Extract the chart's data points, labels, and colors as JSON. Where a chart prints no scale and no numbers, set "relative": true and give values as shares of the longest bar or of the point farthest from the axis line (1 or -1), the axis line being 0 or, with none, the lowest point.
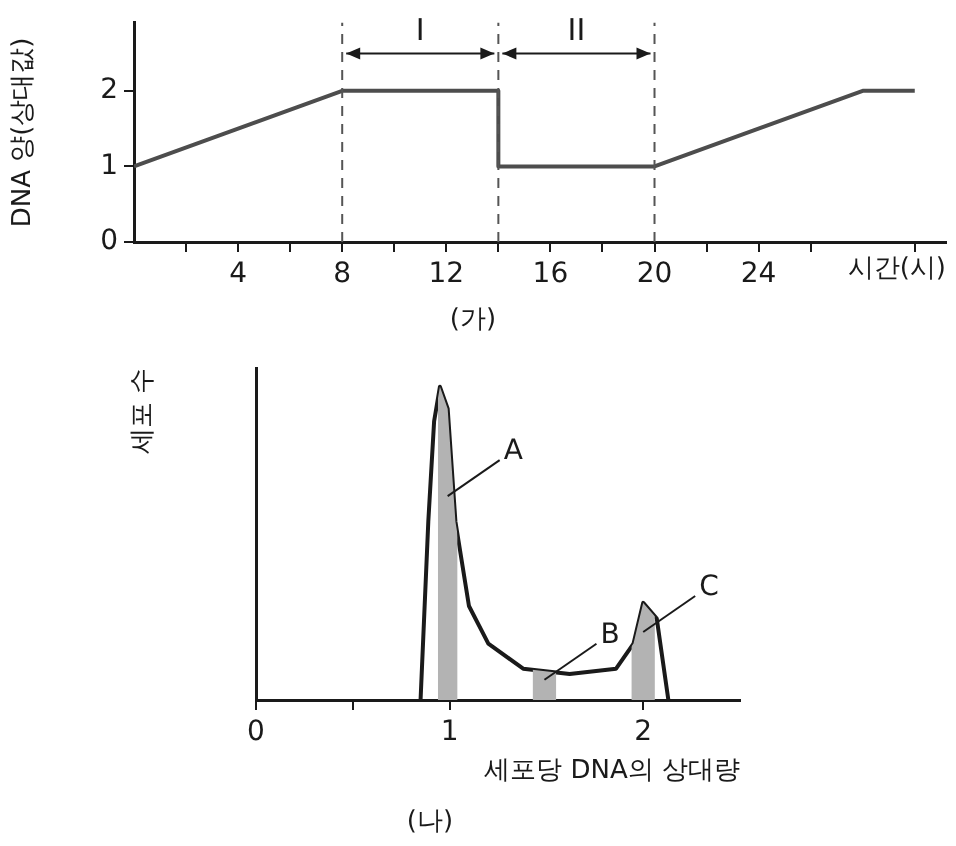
{
  "chart_data": [
    {
      "type": "line",
      "title": "(가)",
      "xlabel": "시간(시)",
      "ylabel": "DNA 양(상대값)",
      "x": [
        0,
        8,
        14,
        14,
        20,
        28,
        30
      ],
      "values": [
        1,
        2,
        2,
        1,
        1,
        2,
        2
      ],
      "color": "#4d4d4d",
      "xlim": [
        0,
        31.2
      ],
      "ylim": [
        0,
        2.9
      ],
      "xticks": [
        {
          "value": 2,
          "label": null
        },
        4,
        {
          "value": 6,
          "label": null
        },
        8,
        {
          "value": 10,
          "label": null
        },
        12,
        {
          "value": 14,
          "label": null
        },
        16,
        {
          "value": 18,
          "label": null
        },
        20,
        {
          "value": 22,
          "label": null
        },
        24,
        {
          "value": 26,
          "label": null
        },
        {
          "value": 30,
          "label": null
        }
      ],
      "yticks": [
        0,
        1,
        2
      ],
      "ref_lines": [
        {
          "axis": "x",
          "value": 8,
          "line_style": "dashed"
        },
        {
          "axis": "x",
          "value": 14,
          "line_style": "dashed"
        },
        {
          "axis": "x",
          "value": 20,
          "line_style": "dashed"
        }
      ],
      "annotations": [
        "I",
        "II"
      ],
      "grid": false,
      "marker": "none"
    },
    {
      "type": "line",
      "title": "(나)",
      "xlabel": "세포당 DNA의 상대량",
      "ylabel": "세포 수",
      "relative": true,
      "x": [
        0.85,
        0.89,
        0.92,
        0.95,
        0.99,
        1.03,
        1.1,
        1.2,
        1.38,
        1.62,
        1.86,
        1.95,
        2.0,
        2.07,
        2.13
      ],
      "values": [
        0,
        0.57,
        0.89,
        1,
        0.93,
        0.57,
        0.3,
        0.18,
        0.1,
        0.083,
        0.1,
        0.18,
        0.31,
        0.26,
        0
      ],
      "color": "#1a1a1a",
      "xlim": [
        0,
        2.5
      ],
      "xticks": [
        0,
        {
          "value": 0.5,
          "label": null
        },
        1,
        2
      ],
      "bands": [
        {
          "axis": "x",
          "from": 0.94,
          "to": 1.04,
          "label": "A",
          "color": "#b3b3b3"
        },
        {
          "axis": "x",
          "from": 1.43,
          "to": 1.55,
          "label": "B",
          "color": "#b3b3b3"
        },
        {
          "axis": "x",
          "from": 1.94,
          "to": 2.06,
          "label": "C",
          "color": "#b3b3b3"
        }
      ],
      "grid": false,
      "marker": "none"
    }
  ]
}
